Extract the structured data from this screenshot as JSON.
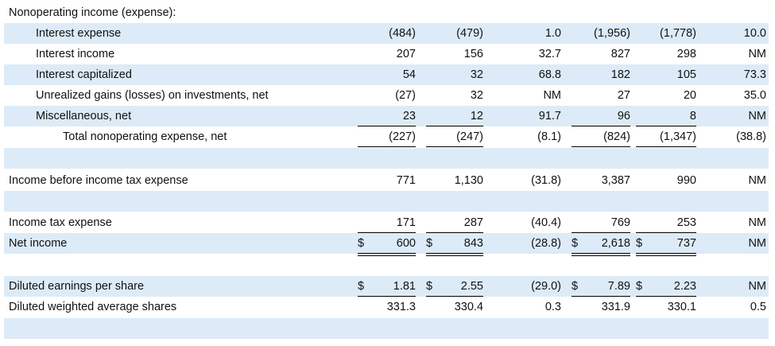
{
  "section_title": "Nonoperating income (expense):",
  "rows": {
    "interest_expense": {
      "label": "Interest expense",
      "v": [
        "(484)",
        "(479)",
        "1.0",
        "(1,956)",
        "(1,778)",
        "10.0"
      ]
    },
    "interest_income": {
      "label": "Interest income",
      "v": [
        "207",
        "156",
        "32.7",
        "827",
        "298",
        "NM"
      ]
    },
    "interest_capitalized": {
      "label": "Interest capitalized",
      "v": [
        "54",
        "32",
        "68.8",
        "182",
        "105",
        "73.3"
      ]
    },
    "unrealized_gains": {
      "label": "Unrealized gains (losses) on investments, net",
      "v": [
        "(27)",
        "32",
        "NM",
        "27",
        "20",
        "35.0"
      ]
    },
    "miscellaneous": {
      "label": "Miscellaneous, net",
      "v": [
        "23",
        "12",
        "91.7",
        "96",
        "8",
        "NM"
      ]
    },
    "total_nonoperating": {
      "label": "Total nonoperating expense, net",
      "v": [
        "(227)",
        "(247)",
        "(8.1)",
        "(824)",
        "(1,347)",
        "(38.8)"
      ]
    },
    "income_before_tax": {
      "label": "Income before income tax expense",
      "v": [
        "771",
        "1,130",
        "(31.8)",
        "3,387",
        "990",
        "NM"
      ]
    },
    "income_tax_expense": {
      "label": "Income tax expense",
      "v": [
        "171",
        "287",
        "(40.4)",
        "769",
        "253",
        "NM"
      ]
    },
    "net_income": {
      "label": "Net income",
      "v": [
        "600",
        "843",
        "(28.8)",
        "2,618",
        "737",
        "NM"
      ]
    },
    "diluted_eps": {
      "label": "Diluted earnings per share",
      "v": [
        "1.81",
        "2.55",
        "(29.0)",
        "7.89",
        "2.23",
        "NM"
      ]
    },
    "diluted_shares": {
      "label": "Diluted weighted average shares",
      "v": [
        "331.3",
        "330.4",
        "0.3",
        "331.9",
        "330.1",
        "0.5"
      ]
    }
  },
  "currency_symbol": "$",
  "colors": {
    "shade": "#dcebf7"
  }
}
